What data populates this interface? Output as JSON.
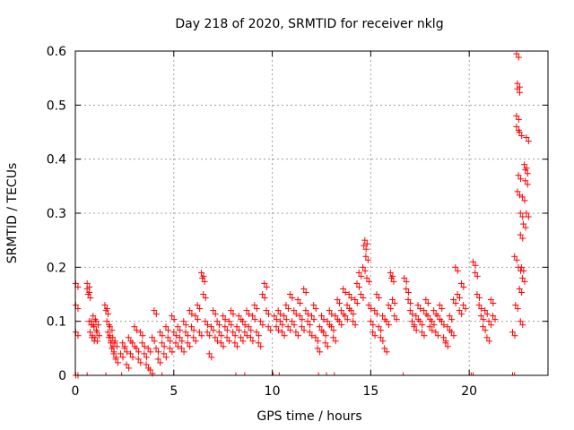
{
  "chart_data": {
    "type": "scatter",
    "title": "Day 218 of 2020, SRMTID for receiver nklg",
    "xlabel": "GPS time / hours",
    "ylabel": "SRMTID / TECUs",
    "xlim": [
      0,
      24
    ],
    "ylim": [
      0,
      0.6
    ],
    "xticks": [
      0,
      5,
      10,
      15,
      20
    ],
    "yticks": [
      0,
      0.1,
      0.2,
      0.3,
      0.4,
      0.5,
      0.6
    ],
    "xtick_labels": [
      "0",
      "5",
      "10",
      "15",
      "20"
    ],
    "ytick_labels": [
      "0",
      "0.1",
      "0.2",
      "0.3",
      "0.4",
      "0.5",
      "0.6"
    ],
    "grid": true,
    "marker": "+",
    "color": "#ff0000",
    "series": [
      {
        "name": "SRMTID",
        "points": [
          [
            0.02,
            0.17
          ],
          [
            0.02,
            0.13
          ],
          [
            0.02,
            0.08
          ],
          [
            0.02,
            0.0
          ],
          [
            0.6,
            0.17
          ],
          [
            0.6,
            0.16
          ],
          [
            0.65,
            0.15
          ],
          [
            0.7,
            0.1
          ],
          [
            0.75,
            0.08
          ],
          [
            0.8,
            0.1
          ],
          [
            0.85,
            0.07
          ],
          [
            0.9,
            0.11
          ],
          [
            0.95,
            0.09
          ],
          [
            1.0,
            0.07
          ],
          [
            1.05,
            0.1
          ],
          [
            1.1,
            0.08
          ],
          [
            1.5,
            0.13
          ],
          [
            1.55,
            0.12
          ],
          [
            1.6,
            0.1
          ],
          [
            1.65,
            0.08
          ],
          [
            1.7,
            0.07
          ],
          [
            1.75,
            0.09
          ],
          [
            1.8,
            0.06
          ],
          [
            1.85,
            0.05
          ],
          [
            1.9,
            0.07
          ],
          [
            1.95,
            0.04
          ],
          [
            2.0,
            0.06
          ],
          [
            2.05,
            0.03
          ],
          [
            2.3,
            0.04
          ],
          [
            2.4,
            0.06
          ],
          [
            2.5,
            0.05
          ],
          [
            2.6,
            0.02
          ],
          [
            2.7,
            0.07
          ],
          [
            2.8,
            0.04
          ],
          [
            2.9,
            0.06
          ],
          [
            3.0,
            0.09
          ],
          [
            3.1,
            0.05
          ],
          [
            3.2,
            0.03
          ],
          [
            3.3,
            0.08
          ],
          [
            3.4,
            0.06
          ],
          [
            3.5,
            0.04
          ],
          [
            3.6,
            0.02
          ],
          [
            3.7,
            0.05
          ],
          [
            3.8,
            0.01
          ],
          [
            3.9,
            0.07
          ],
          [
            4.0,
            0.12
          ],
          [
            4.1,
            0.05
          ],
          [
            4.2,
            0.03
          ],
          [
            4.3,
            0.08
          ],
          [
            4.4,
            0.06
          ],
          [
            4.5,
            0.04
          ],
          [
            4.6,
            0.09
          ],
          [
            4.7,
            0.07
          ],
          [
            4.8,
            0.05
          ],
          [
            4.9,
            0.11
          ],
          [
            5.0,
            0.08
          ],
          [
            5.1,
            0.06
          ],
          [
            5.2,
            0.09
          ],
          [
            5.3,
            0.07
          ],
          [
            5.4,
            0.05
          ],
          [
            5.5,
            0.1
          ],
          [
            5.6,
            0.08
          ],
          [
            5.7,
            0.06
          ],
          [
            5.8,
            0.12
          ],
          [
            5.9,
            0.09
          ],
          [
            6.0,
            0.07
          ],
          [
            6.1,
            0.11
          ],
          [
            6.2,
            0.13
          ],
          [
            6.3,
            0.08
          ],
          [
            6.4,
            0.19
          ],
          [
            6.45,
            0.18
          ],
          [
            6.5,
            0.15
          ],
          [
            6.6,
            0.1
          ],
          [
            6.7,
            0.08
          ],
          [
            6.8,
            0.04
          ],
          [
            6.9,
            0.09
          ],
          [
            7.0,
            0.12
          ],
          [
            7.1,
            0.07
          ],
          [
            7.2,
            0.1
          ],
          [
            7.3,
            0.08
          ],
          [
            7.4,
            0.06
          ],
          [
            7.5,
            0.11
          ],
          [
            7.6,
            0.09
          ],
          [
            7.7,
            0.07
          ],
          [
            7.8,
            0.1
          ],
          [
            7.9,
            0.12
          ],
          [
            8.0,
            0.08
          ],
          [
            8.1,
            0.06
          ],
          [
            8.2,
            0.09
          ],
          [
            8.3,
            0.11
          ],
          [
            8.4,
            0.07
          ],
          [
            8.5,
            0.1
          ],
          [
            8.6,
            0.08
          ],
          [
            8.7,
            0.12
          ],
          [
            8.8,
            0.09
          ],
          [
            8.9,
            0.07
          ],
          [
            9.0,
            0.11
          ],
          [
            9.1,
            0.13
          ],
          [
            9.2,
            0.08
          ],
          [
            9.3,
            0.06
          ],
          [
            9.4,
            0.1
          ],
          [
            9.5,
            0.15
          ],
          [
            9.6,
            0.17
          ],
          [
            9.7,
            0.12
          ],
          [
            9.8,
            0.09
          ],
          [
            10.1,
            0.11
          ],
          [
            10.2,
            0.09
          ],
          [
            10.3,
            0.12
          ],
          [
            10.4,
            0.1
          ],
          [
            10.5,
            0.08
          ],
          [
            10.6,
            0.11
          ],
          [
            10.7,
            0.13
          ],
          [
            10.8,
            0.09
          ],
          [
            10.9,
            0.15
          ],
          [
            11.0,
            0.1
          ],
          [
            11.1,
            0.12
          ],
          [
            11.2,
            0.08
          ],
          [
            11.3,
            0.14
          ],
          [
            11.4,
            0.11
          ],
          [
            11.5,
            0.09
          ],
          [
            11.6,
            0.16
          ],
          [
            11.7,
            0.12
          ],
          [
            11.8,
            0.1
          ],
          [
            11.9,
            0.08
          ],
          [
            12.0,
            0.11
          ],
          [
            12.1,
            0.13
          ],
          [
            12.2,
            0.07
          ],
          [
            12.3,
            0.05
          ],
          [
            12.4,
            0.09
          ],
          [
            12.5,
            0.11
          ],
          [
            12.6,
            0.08
          ],
          [
            12.7,
            0.06
          ],
          [
            12.8,
            0.1
          ],
          [
            12.9,
            0.12
          ],
          [
            13.0,
            0.09
          ],
          [
            13.1,
            0.07
          ],
          [
            13.2,
            0.11
          ],
          [
            13.3,
            0.14
          ],
          [
            13.4,
            0.1
          ],
          [
            13.5,
            0.12
          ],
          [
            13.6,
            0.16
          ],
          [
            13.7,
            0.11
          ],
          [
            13.8,
            0.13
          ],
          [
            13.9,
            0.15
          ],
          [
            14.0,
            0.12
          ],
          [
            14.1,
            0.1
          ],
          [
            14.2,
            0.14
          ],
          [
            14.3,
            0.17
          ],
          [
            14.4,
            0.19
          ],
          [
            14.5,
            0.15
          ],
          [
            14.6,
            0.2
          ],
          [
            14.65,
            0.24
          ],
          [
            14.7,
            0.25
          ],
          [
            14.75,
            0.22
          ],
          [
            14.8,
            0.18
          ],
          [
            14.9,
            0.13
          ],
          [
            15.0,
            0.1
          ],
          [
            15.1,
            0.08
          ],
          [
            15.2,
            0.12
          ],
          [
            15.3,
            0.15
          ],
          [
            15.4,
            0.09
          ],
          [
            15.5,
            0.07
          ],
          [
            15.6,
            0.11
          ],
          [
            15.7,
            0.05
          ],
          [
            15.8,
            0.1
          ],
          [
            15.9,
            0.13
          ],
          [
            16.0,
            0.19
          ],
          [
            16.05,
            0.18
          ],
          [
            16.1,
            0.14
          ],
          [
            16.2,
            0.11
          ],
          [
            16.7,
            0.18
          ],
          [
            16.8,
            0.16
          ],
          [
            16.9,
            0.14
          ],
          [
            17.0,
            0.12
          ],
          [
            17.1,
            0.1
          ],
          [
            17.2,
            0.09
          ],
          [
            17.3,
            0.11
          ],
          [
            17.4,
            0.13
          ],
          [
            17.5,
            0.1
          ],
          [
            17.6,
            0.08
          ],
          [
            17.7,
            0.12
          ],
          [
            17.8,
            0.14
          ],
          [
            17.9,
            0.11
          ],
          [
            18.0,
            0.09
          ],
          [
            18.1,
            0.1
          ],
          [
            18.2,
            0.12
          ],
          [
            18.3,
            0.08
          ],
          [
            18.4,
            0.11
          ],
          [
            18.5,
            0.13
          ],
          [
            18.6,
            0.1
          ],
          [
            18.7,
            0.07
          ],
          [
            18.8,
            0.06
          ],
          [
            18.9,
            0.09
          ],
          [
            19.0,
            0.11
          ],
          [
            19.1,
            0.08
          ],
          [
            19.2,
            0.14
          ],
          [
            19.3,
            0.2
          ],
          [
            19.4,
            0.15
          ],
          [
            19.5,
            0.12
          ],
          [
            19.6,
            0.17
          ],
          [
            19.7,
            0.13
          ],
          [
            20.2,
            0.21
          ],
          [
            20.3,
            0.19
          ],
          [
            20.4,
            0.15
          ],
          [
            20.5,
            0.13
          ],
          [
            20.6,
            0.11
          ],
          [
            20.7,
            0.09
          ],
          [
            20.8,
            0.12
          ],
          [
            20.9,
            0.07
          ],
          [
            21.0,
            0.1
          ],
          [
            21.1,
            0.14
          ],
          [
            21.2,
            0.11
          ],
          [
            22.2,
            0.08
          ],
          [
            22.3,
            0.22
          ],
          [
            22.35,
            0.13
          ],
          [
            22.4,
            0.46
          ],
          [
            22.4,
            0.48
          ],
          [
            22.45,
            0.54
          ],
          [
            22.45,
            0.53
          ],
          [
            22.4,
            0.595
          ],
          [
            22.45,
            0.34
          ],
          [
            22.5,
            0.37
          ],
          [
            22.55,
            0.45
          ],
          [
            22.6,
            0.3
          ],
          [
            22.6,
            0.26
          ],
          [
            22.65,
            0.2
          ],
          [
            22.7,
            0.33
          ],
          [
            22.75,
            0.28
          ],
          [
            22.8,
            0.39
          ],
          [
            22.85,
            0.38
          ],
          [
            22.85,
            0.36
          ],
          [
            22.9,
            0.44
          ],
          [
            22.9,
            0.3
          ],
          [
            22.6,
            0.1
          ],
          [
            22.7,
            0.18
          ],
          [
            22.5,
            0.2
          ],
          [
            22.55,
            0.16
          ]
        ]
      }
    ],
    "data_gaps_at_zero_x": [
      0.02,
      0.6,
      1.55,
      2.35,
      4.4,
      8.15,
      8.6,
      10.05,
      10.35,
      12.35,
      12.75,
      13.15,
      16.65,
      20.1,
      20.2,
      22.2,
      22.3
    ]
  }
}
